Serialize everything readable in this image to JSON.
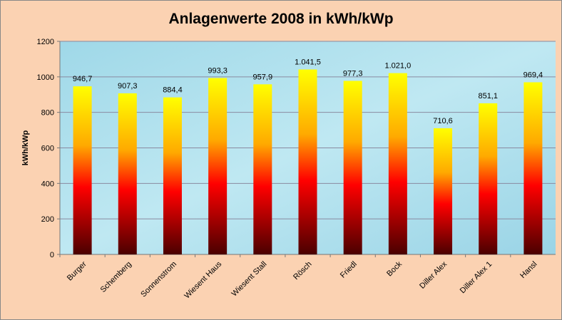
{
  "chart_data": {
    "type": "bar",
    "title": "Anlagenwerte 2008 in kWh/kWp",
    "xlabel": "",
    "ylabel": "kWh/kWp",
    "ylim": [
      0,
      1200
    ],
    "yticks": [
      "0",
      "200",
      "400",
      "600",
      "800",
      "1000",
      "1200"
    ],
    "grid": true,
    "categories": [
      "Burger",
      "Schemberg",
      "Sonnenstrom",
      "Wiesent Haus",
      "Wiesent Stall",
      "Rösch",
      "Friedl",
      "Bock",
      "Diller Alex",
      "Diller Alex 1",
      "Hansl"
    ],
    "values": [
      946.7,
      907.3,
      884.4,
      993.3,
      957.9,
      1041.5,
      977.3,
      1021.0,
      710.6,
      851.1,
      969.4
    ],
    "data_labels": [
      "946,7",
      "907,3",
      "884,4",
      "993,3",
      "957,9",
      "1.041,5",
      "977,3",
      "1.021,0",
      "710,6",
      "851,1",
      "969,4"
    ],
    "colors": {
      "background": "#fbd2b2",
      "plot_area": "#a8dcea",
      "bar_top": "#ffff00",
      "bar_mid": "#ff0000",
      "bar_bottom": "#4a0000"
    }
  }
}
